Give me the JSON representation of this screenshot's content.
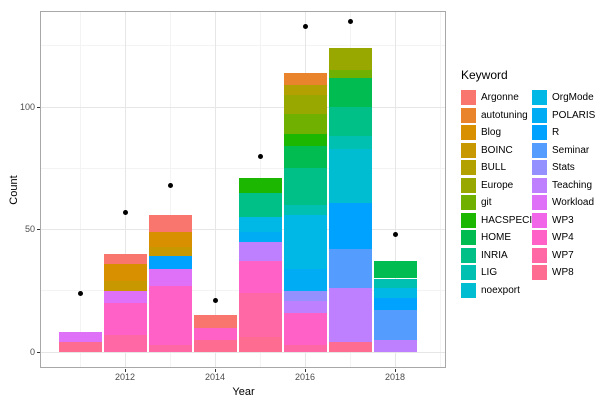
{
  "chart_data": {
    "type": "bar",
    "stacked": true,
    "xlabel": "Year",
    "ylabel": "Count",
    "legend_title": "Keyword",
    "legend_position": "right",
    "grid": true,
    "ylim": [
      -7,
      145
    ],
    "y_axis": {
      "major_ticks": [
        0,
        50,
        100
      ],
      "minor_gridlines": [
        25,
        75,
        125
      ]
    },
    "x_axis": {
      "major_ticks": [
        2012,
        2014,
        2016,
        2018
      ],
      "minor_gridlines": [
        2011,
        2013,
        2015,
        2017,
        2019
      ]
    },
    "keywords": [
      "Argonne",
      "autotuning",
      "Blog",
      "BOINC",
      "BULL",
      "Europe",
      "git",
      "HACSPECIS",
      "HOME",
      "INRIA",
      "LIG",
      "noexport",
      "OrgMode",
      "POLARIS",
      "R",
      "Seminar",
      "Stats",
      "Teaching",
      "Workload",
      "WP3",
      "WP4",
      "WP7",
      "WP8"
    ],
    "colors": {
      "Argonne": "#F8766D",
      "autotuning": "#E9842C",
      "Blog": "#D89000",
      "BOINC": "#C79800",
      "BULL": "#B2A100",
      "Europe": "#99A800",
      "git": "#6FB000",
      "HACSPECIS": "#1CB700",
      "HOME": "#00BC51",
      "INRIA": "#00C087",
      "LIG": "#00C0B2",
      "noexport": "#00BDD2",
      "OrgMode": "#00B8E5",
      "POLARIS": "#00ACF4",
      "R": "#00A2FF",
      "Seminar": "#559CFF",
      "Stats": "#9590FF",
      "Teaching": "#BF80FF",
      "Workload": "#DF70F8",
      "WP3": "#F166E8",
      "WP4": "#FF61C7",
      "WP7": "#FF67A5",
      "WP8": "#FF6C91"
    },
    "bars": [
      {
        "year": 2011,
        "total": 8,
        "segments": [
          {
            "keyword": "Workload",
            "count": 4
          },
          {
            "keyword": "WP8",
            "count": 4
          }
        ]
      },
      {
        "year": 2012,
        "total": 40,
        "segments": [
          {
            "keyword": "Argonne",
            "count": 4
          },
          {
            "keyword": "Blog",
            "count": 7
          },
          {
            "keyword": "BOINC",
            "count": 4
          },
          {
            "keyword": "Workload",
            "count": 5
          },
          {
            "keyword": "WP4",
            "count": 13
          },
          {
            "keyword": "WP7",
            "count": 7
          }
        ]
      },
      {
        "year": 2013,
        "total": 56,
        "segments": [
          {
            "keyword": "Argonne",
            "count": 7
          },
          {
            "keyword": "Blog",
            "count": 6
          },
          {
            "keyword": "BOINC",
            "count": 4
          },
          {
            "keyword": "R",
            "count": 5
          },
          {
            "keyword": "Workload",
            "count": 7
          },
          {
            "keyword": "WP4",
            "count": 24
          },
          {
            "keyword": "WP7",
            "count": 3
          }
        ]
      },
      {
        "year": 2014,
        "total": 15,
        "segments": [
          {
            "keyword": "Argonne",
            "count": 5
          },
          {
            "keyword": "WP4",
            "count": 5
          },
          {
            "keyword": "WP8",
            "count": 5
          }
        ]
      },
      {
        "year": 2015,
        "total": 71,
        "segments": [
          {
            "keyword": "HACSPECIS",
            "count": 6
          },
          {
            "keyword": "INRIA",
            "count": 10
          },
          {
            "keyword": "OrgMode",
            "count": 6
          },
          {
            "keyword": "POLARIS",
            "count": 4
          },
          {
            "keyword": "Teaching",
            "count": 8
          },
          {
            "keyword": "WP4",
            "count": 13
          },
          {
            "keyword": "WP7",
            "count": 18
          },
          {
            "keyword": "WP8",
            "count": 6
          }
        ]
      },
      {
        "year": 2016,
        "total": 114,
        "segments": [
          {
            "keyword": "autotuning",
            "count": 5
          },
          {
            "keyword": "BULL",
            "count": 4
          },
          {
            "keyword": "Europe",
            "count": 8
          },
          {
            "keyword": "git",
            "count": 8
          },
          {
            "keyword": "HACSPECIS",
            "count": 5
          },
          {
            "keyword": "HOME",
            "count": 9
          },
          {
            "keyword": "INRIA",
            "count": 15
          },
          {
            "keyword": "LIG",
            "count": 4
          },
          {
            "keyword": "OrgMode",
            "count": 22
          },
          {
            "keyword": "POLARIS",
            "count": 9
          },
          {
            "keyword": "Stats",
            "count": 4
          },
          {
            "keyword": "Teaching",
            "count": 5
          },
          {
            "keyword": "WP4",
            "count": 13
          },
          {
            "keyword": "WP7",
            "count": 3
          }
        ]
      },
      {
        "year": 2017,
        "total": 124,
        "segments": [
          {
            "keyword": "Europe",
            "count": 9
          },
          {
            "keyword": "git",
            "count": 3
          },
          {
            "keyword": "HOME",
            "count": 12
          },
          {
            "keyword": "INRIA",
            "count": 12
          },
          {
            "keyword": "LIG",
            "count": 5
          },
          {
            "keyword": "noexport",
            "count": 22
          },
          {
            "keyword": "R",
            "count": 19
          },
          {
            "keyword": "Seminar",
            "count": 16
          },
          {
            "keyword": "Teaching",
            "count": 22
          },
          {
            "keyword": "WP8",
            "count": 4
          }
        ]
      },
      {
        "year": 2018,
        "total": 37,
        "segments": [
          {
            "keyword": "HOME",
            "count": 7
          },
          {
            "keyword": "LIG",
            "count": 4
          },
          {
            "keyword": "OrgMode",
            "count": 4
          },
          {
            "keyword": "R",
            "count": 5
          },
          {
            "keyword": "Seminar",
            "count": 12
          },
          {
            "keyword": "Teaching",
            "count": 5
          }
        ]
      }
    ],
    "points": [
      {
        "year": 2011,
        "count": 24
      },
      {
        "year": 2012,
        "count": 57
      },
      {
        "year": 2013,
        "count": 68
      },
      {
        "year": 2014,
        "count": 21
      },
      {
        "year": 2015,
        "count": 80
      },
      {
        "year": 2016,
        "count": 133
      },
      {
        "year": 2017,
        "count": 135
      },
      {
        "year": 2018,
        "count": 48
      }
    ]
  }
}
